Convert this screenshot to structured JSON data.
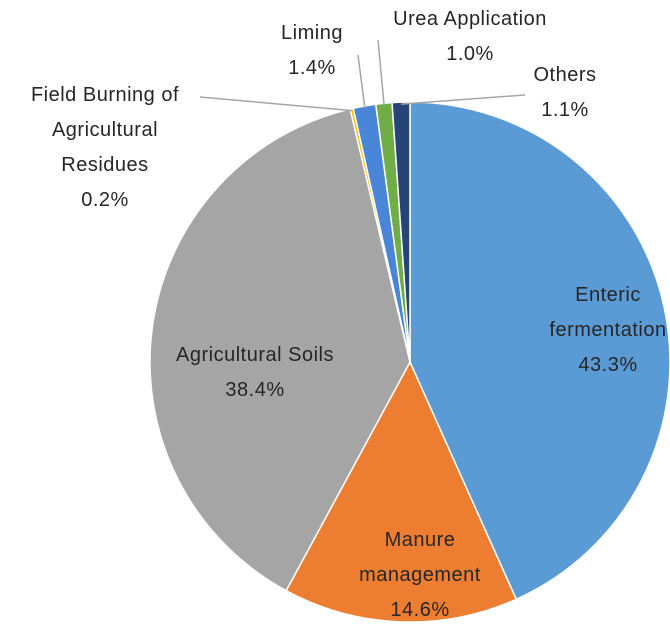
{
  "chart_data": {
    "type": "pie",
    "categories": [
      "Enteric fermentation",
      "Manure management",
      "Agricultural Soils",
      "Field Burning of Agricultural Residues",
      "Liming",
      "Urea Application",
      "Others"
    ],
    "values": [
      43.3,
      14.6,
      38.4,
      0.2,
      1.4,
      1.0,
      1.1
    ],
    "value_labels": [
      "43.3%",
      "14.6%",
      "38.4%",
      "0.2%",
      "1.4%",
      "1.0%",
      "1.1%"
    ],
    "colors": [
      "#5b9bd5",
      "#ed7d31",
      "#a5a5a5",
      "#ffc000",
      "#4a86d8",
      "#70ad47",
      "#264478"
    ]
  }
}
